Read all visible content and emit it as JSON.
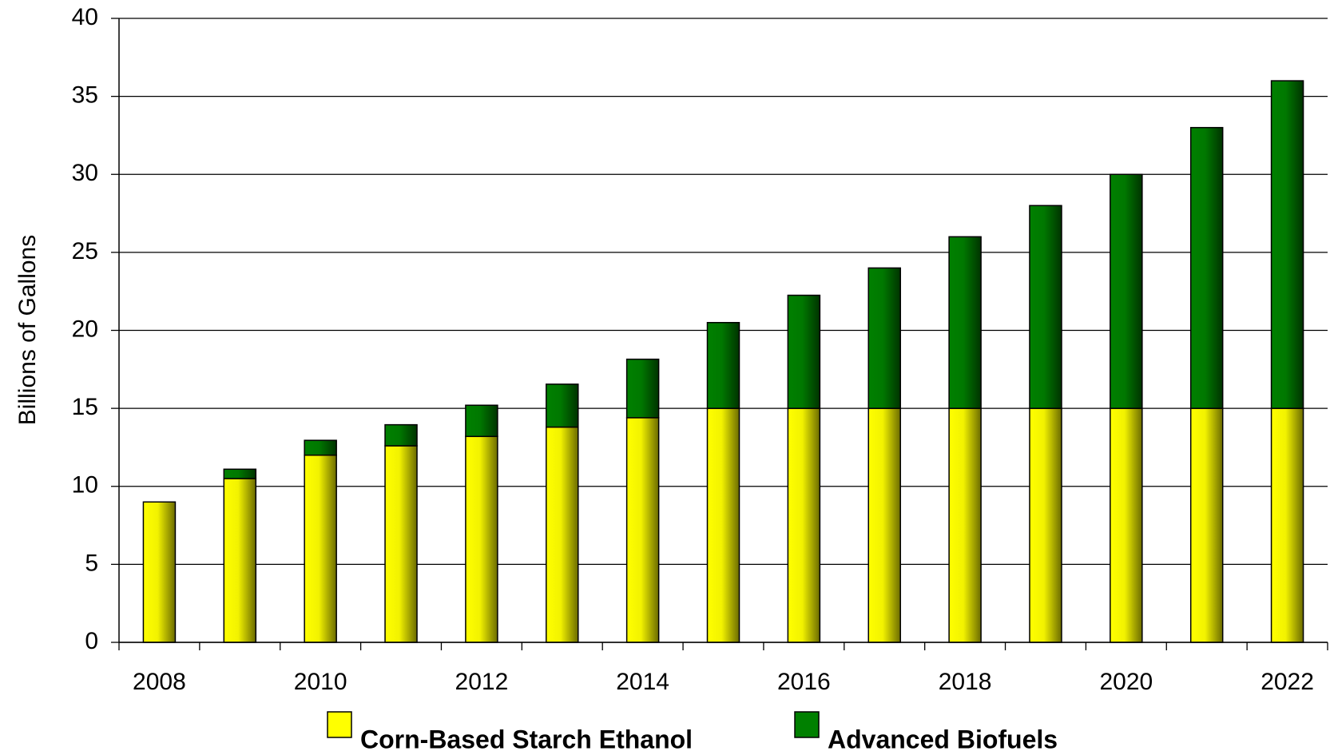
{
  "chart_data": {
    "type": "stacked_bar",
    "y_label": "Billions of Gallons",
    "categories": [
      "2008",
      null,
      "2010",
      null,
      "2012",
      null,
      "2014",
      null,
      "2016",
      null,
      "2018",
      null,
      "2020",
      null,
      "2022"
    ],
    "series": [
      {
        "name": "Corn-Based Starch Ethanol",
        "color": "#ffff00",
        "values": [
          9,
          10.5,
          12,
          12.6,
          13.2,
          13.8,
          14.4,
          15,
          15,
          15,
          15,
          15,
          15,
          15,
          15
        ]
      },
      {
        "name": "Advanced Biofuels",
        "color": "#008000",
        "values": [
          0,
          0.6,
          0.95,
          1.35,
          2.0,
          2.75,
          3.75,
          5.5,
          7.25,
          9,
          11,
          13,
          15,
          18,
          21
        ]
      }
    ],
    "ylim": [
      0,
      40
    ],
    "yticks": [
      0,
      5,
      10,
      15,
      20,
      25,
      30,
      35,
      40
    ],
    "grid": true,
    "legend": "bottom"
  }
}
